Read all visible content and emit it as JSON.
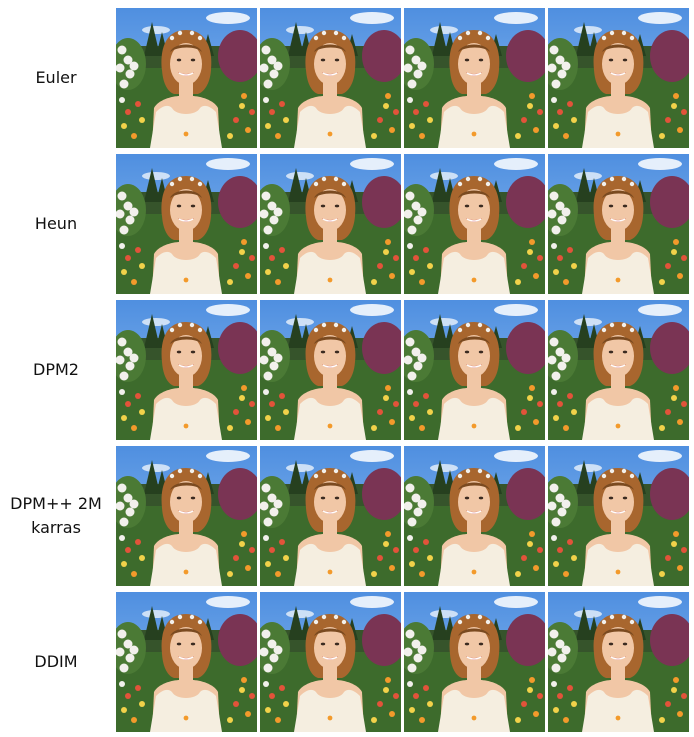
{
  "rows": [
    {
      "label": "Euler",
      "images": [
        "garden-portrait",
        "garden-portrait",
        "garden-portrait",
        "garden-portrait"
      ]
    },
    {
      "label": "Heun",
      "images": [
        "garden-portrait",
        "garden-portrait",
        "garden-portrait",
        "garden-portrait"
      ]
    },
    {
      "label": "DPM2",
      "images": [
        "garden-portrait",
        "garden-portrait",
        "garden-portrait",
        "garden-portrait"
      ]
    },
    {
      "label": "DPM++ 2M\nkarras",
      "images": [
        "garden-portrait",
        "garden-portrait",
        "garden-portrait",
        "garden-portrait"
      ]
    },
    {
      "label": "DDIM",
      "images": [
        "garden-portrait",
        "garden-portrait",
        "garden-portrait",
        "garden-portrait"
      ]
    }
  ],
  "colors": {
    "sky": "#8fbdf0",
    "sky_top": "#4f8fe0",
    "cloud": "#ffffff",
    "hedge": "#36542b",
    "tree": "#26401f",
    "foliage": "#3d6b2c",
    "purple_bush": "#7a3454",
    "white_flowers": "#f2f0ec",
    "flower_red": "#e2533a",
    "flower_orange": "#f39a2b",
    "flower_yellow": "#f2d24a",
    "hair": "#a8662e",
    "hair_dark": "#7a4a20",
    "skin": "#f1c7a6",
    "dress": "#f5eee0",
    "lips": "#c9484b"
  }
}
